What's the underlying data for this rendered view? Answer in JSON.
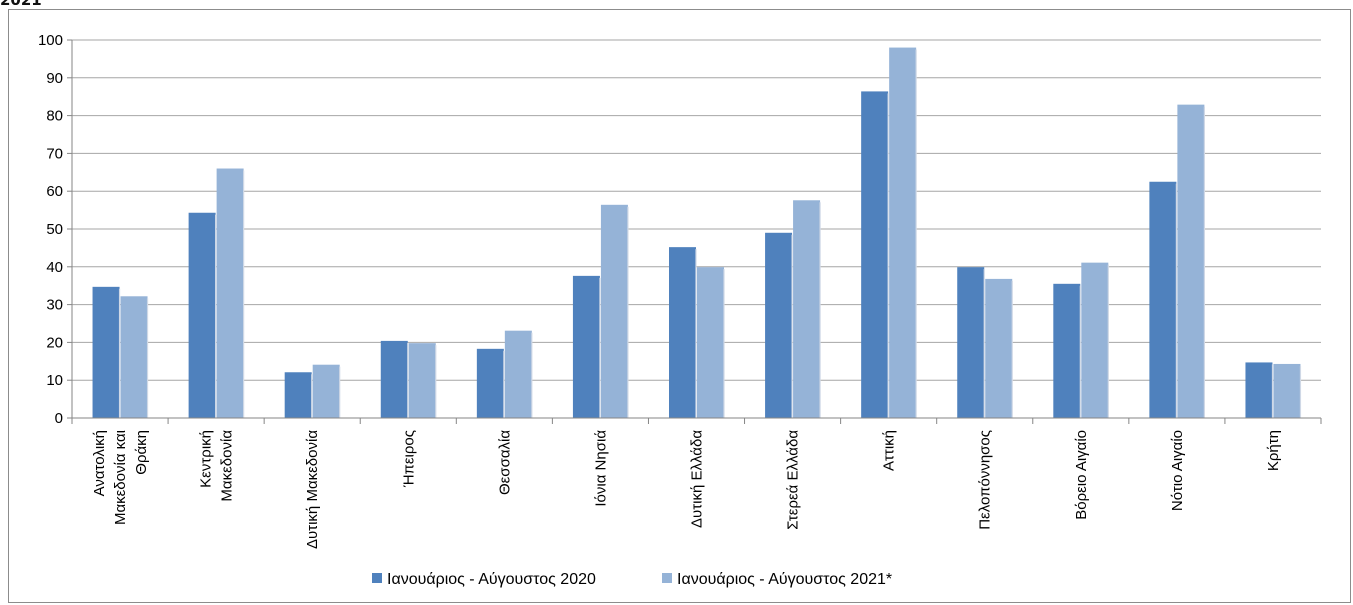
{
  "figure_title": "2021",
  "colors": {
    "series_2020": "#4f81bd",
    "series_2021": "#95b3d7",
    "gridline": "#a6a6a6",
    "axis": "#868686"
  },
  "chart_data": {
    "type": "bar",
    "title": "",
    "xlabel": "",
    "ylabel": "",
    "ylim": [
      0,
      100
    ],
    "yticks": [
      0,
      10,
      20,
      30,
      40,
      50,
      60,
      70,
      80,
      90,
      100
    ],
    "grid": true,
    "legend_position": "bottom",
    "categories": [
      [
        "Ανατολική",
        "Μακεδονία και",
        "Θράκη"
      ],
      [
        "Κεντρική",
        "Μακεδονία"
      ],
      [
        "Δυτική Μακεδονία"
      ],
      [
        "Ήπειρος"
      ],
      [
        "Θεσσαλία"
      ],
      [
        "Ιόνια Νησιά"
      ],
      [
        "Δυτική Ελλάδα"
      ],
      [
        "Στερεά Ελλάδα"
      ],
      [
        "Αττική"
      ],
      [
        "Πελοπόννησος"
      ],
      [
        "Βόρειο Αιγαίο"
      ],
      [
        "Νότιο Αιγαίο"
      ],
      [
        "Κρήτη"
      ]
    ],
    "series": [
      {
        "name": "Ιανουάριος - Αύγουστος 2020",
        "values": [
          34.7,
          54.3,
          12.1,
          20.4,
          18.3,
          37.6,
          45.2,
          49.0,
          86.4,
          39.9,
          35.5,
          62.5,
          14.7
        ]
      },
      {
        "name": "Ιανουάριος - Αύγουστος 2021*",
        "values": [
          32.2,
          66.0,
          14.1,
          19.8,
          23.1,
          56.4,
          39.9,
          57.6,
          98.0,
          36.8,
          41.1,
          82.9,
          14.3
        ]
      }
    ]
  }
}
